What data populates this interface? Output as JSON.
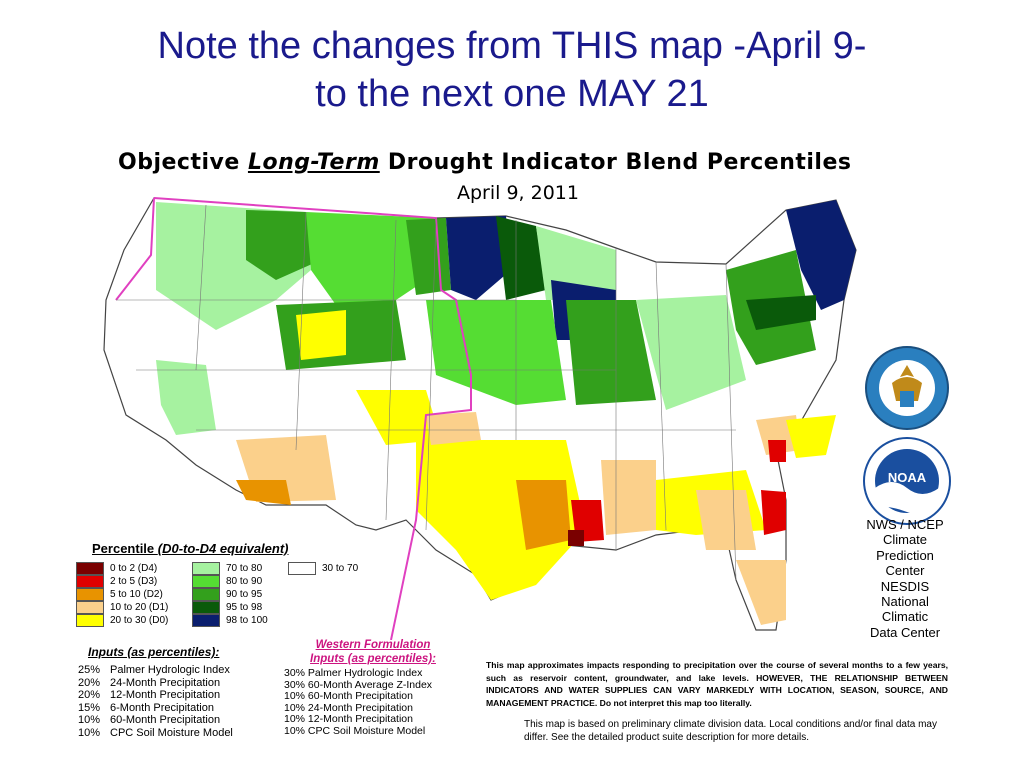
{
  "slide_title": {
    "line1": "Note the changes  from THIS map -April 9-",
    "line2": "to the next one MAY 21"
  },
  "map": {
    "title_prefix": "Objective ",
    "title_emph": "Long-Term",
    "title_suffix": " Drought Indicator Blend Percentiles",
    "date": "April 9, 2011"
  },
  "colors": {
    "d4": "#7a0000",
    "d3": "#e00000",
    "d2": "#e89300",
    "d1": "#fbd08b",
    "d0": "#ffff00",
    "p70_80": "#a6f2a0",
    "p80_90": "#55dd33",
    "p90_95": "#33a01c",
    "p95_98": "#0a5a0a",
    "p98_100": "#0a1e6e",
    "p30_70": "#ffffff",
    "boundary": "#e040c0"
  },
  "legend": {
    "title_prefix": "Percentile  ",
    "title_suffix": "(D0-to-D4 equivalent)",
    "items": [
      {
        "label": "0 to 2  (D4)"
      },
      {
        "label": "2 to 5  (D3)"
      },
      {
        "label": "5 to 10  (D2)"
      },
      {
        "label": "10 to 20  (D1)"
      },
      {
        "label": "20 to 30  (D0)"
      },
      {
        "label": "70 to 80"
      },
      {
        "label": "80 to 90"
      },
      {
        "label": "90 to 95"
      },
      {
        "label": "95 to 98"
      },
      {
        "label": "98 to 100"
      },
      {
        "label": "30 to 70"
      }
    ]
  },
  "inputs": {
    "title": "Inputs (as percentiles):",
    "items": [
      {
        "pct": "25%",
        "label": "Palmer Hydrologic Index"
      },
      {
        "pct": "20%",
        "label": "24-Month Precipitation"
      },
      {
        "pct": "20%",
        "label": "12-Month Precipitation"
      },
      {
        "pct": "15%",
        "label": "6-Month Precipitation"
      },
      {
        "pct": "10%",
        "label": "60-Month Precipitation"
      },
      {
        "pct": "10%",
        "label": "CPC Soil Moisture Model"
      }
    ]
  },
  "western": {
    "title_line1": "Western Formulation",
    "title_line2": "Inputs (as percentiles):",
    "items": [
      "30% Palmer Hydrologic Index",
      "30% 60-Month Average Z-Index",
      "10% 60-Month Precipitation",
      "10% 24-Month Precipitation",
      "10% 12-Month Precipitation",
      "10% CPC Soil Moisture Model"
    ]
  },
  "disclaimer": "This map approximates impacts responding to precipitation over the course of several months to a few years, such as reservoir content, groundwater, and lake levels. HOWEVER, THE RELATIONSHIP BETWEEN INDICATORS AND WATER SUPPLIES CAN VARY MARKEDLY WITH LOCATION, SEASON, SOURCE, AND MANAGEMENT PRACTICE. Do not interpret this map too literally.",
  "note": "This map is based on preliminary climate division data. Local conditions and/or final data may differ. See the detailed product suite description for more details.",
  "credits": {
    "line1": "NWS / NCEP",
    "line2": "Climate",
    "line3": "Prediction",
    "line4": "Center",
    "line5": "NESDIS",
    "line6": "National",
    "line7": "Climatic",
    "line8": "Data Center"
  },
  "logos": {
    "noaa_text": "NOAA",
    "commerce_icon": "department-of-commerce-seal-icon",
    "noaa_icon": "noaa-logo-icon"
  }
}
